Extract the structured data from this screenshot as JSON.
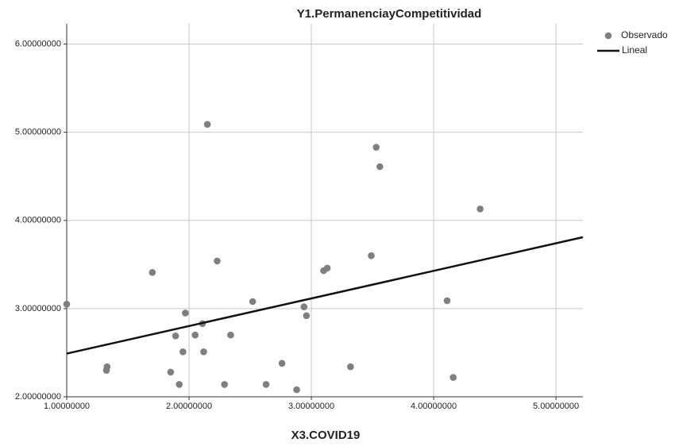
{
  "chart_data": {
    "type": "scatter",
    "title": "Y1.PermanenciayCompetitividad",
    "x_label": "X3.COVID19",
    "xlim": [
      1,
      5.22
    ],
    "ylim": [
      2,
      6.23
    ],
    "xticks": [
      {
        "value": 1,
        "label": "1.00000000"
      },
      {
        "value": 2,
        "label": "2.00000000"
      },
      {
        "value": 3,
        "label": "3.00000000"
      },
      {
        "value": 4,
        "label": "4.00000000"
      },
      {
        "value": 5,
        "label": "5.00000000"
      }
    ],
    "yticks": [
      {
        "value": 2,
        "label": "2.00000000"
      },
      {
        "value": 3,
        "label": "3.00000000"
      },
      {
        "value": 4,
        "label": "4.00000000"
      },
      {
        "value": 5,
        "label": "5.00000000"
      },
      {
        "value": 6,
        "label": "6.00000000"
      }
    ],
    "grid": true,
    "legend": "right",
    "series": [
      {
        "name": "Observado",
        "type": "scatter",
        "color": "#7f7f7f",
        "x": [
          1.0,
          1.325,
          1.33,
          1.7,
          1.85,
          1.89,
          1.92,
          1.95,
          1.97,
          2.05,
          2.11,
          2.12,
          2.15,
          2.23,
          2.29,
          2.34,
          2.52,
          2.63,
          2.76,
          2.88,
          2.94,
          2.96,
          3.1,
          3.13,
          3.32,
          3.49,
          3.53,
          3.56,
          4.11,
          4.16,
          4.38
        ],
        "values": [
          3.05,
          2.3,
          2.34,
          3.41,
          2.28,
          2.69,
          2.14,
          2.51,
          2.95,
          2.7,
          2.83,
          2.51,
          5.09,
          3.54,
          2.14,
          2.7,
          3.08,
          2.14,
          2.38,
          2.08,
          3.02,
          2.92,
          3.43,
          3.46,
          2.34,
          3.6,
          4.83,
          4.61,
          3.09,
          2.22,
          4.13
        ]
      },
      {
        "name": "Lineal",
        "type": "line",
        "color": "#111111",
        "x": [
          1,
          5.22
        ],
        "values": [
          2.49,
          3.81
        ]
      }
    ]
  }
}
